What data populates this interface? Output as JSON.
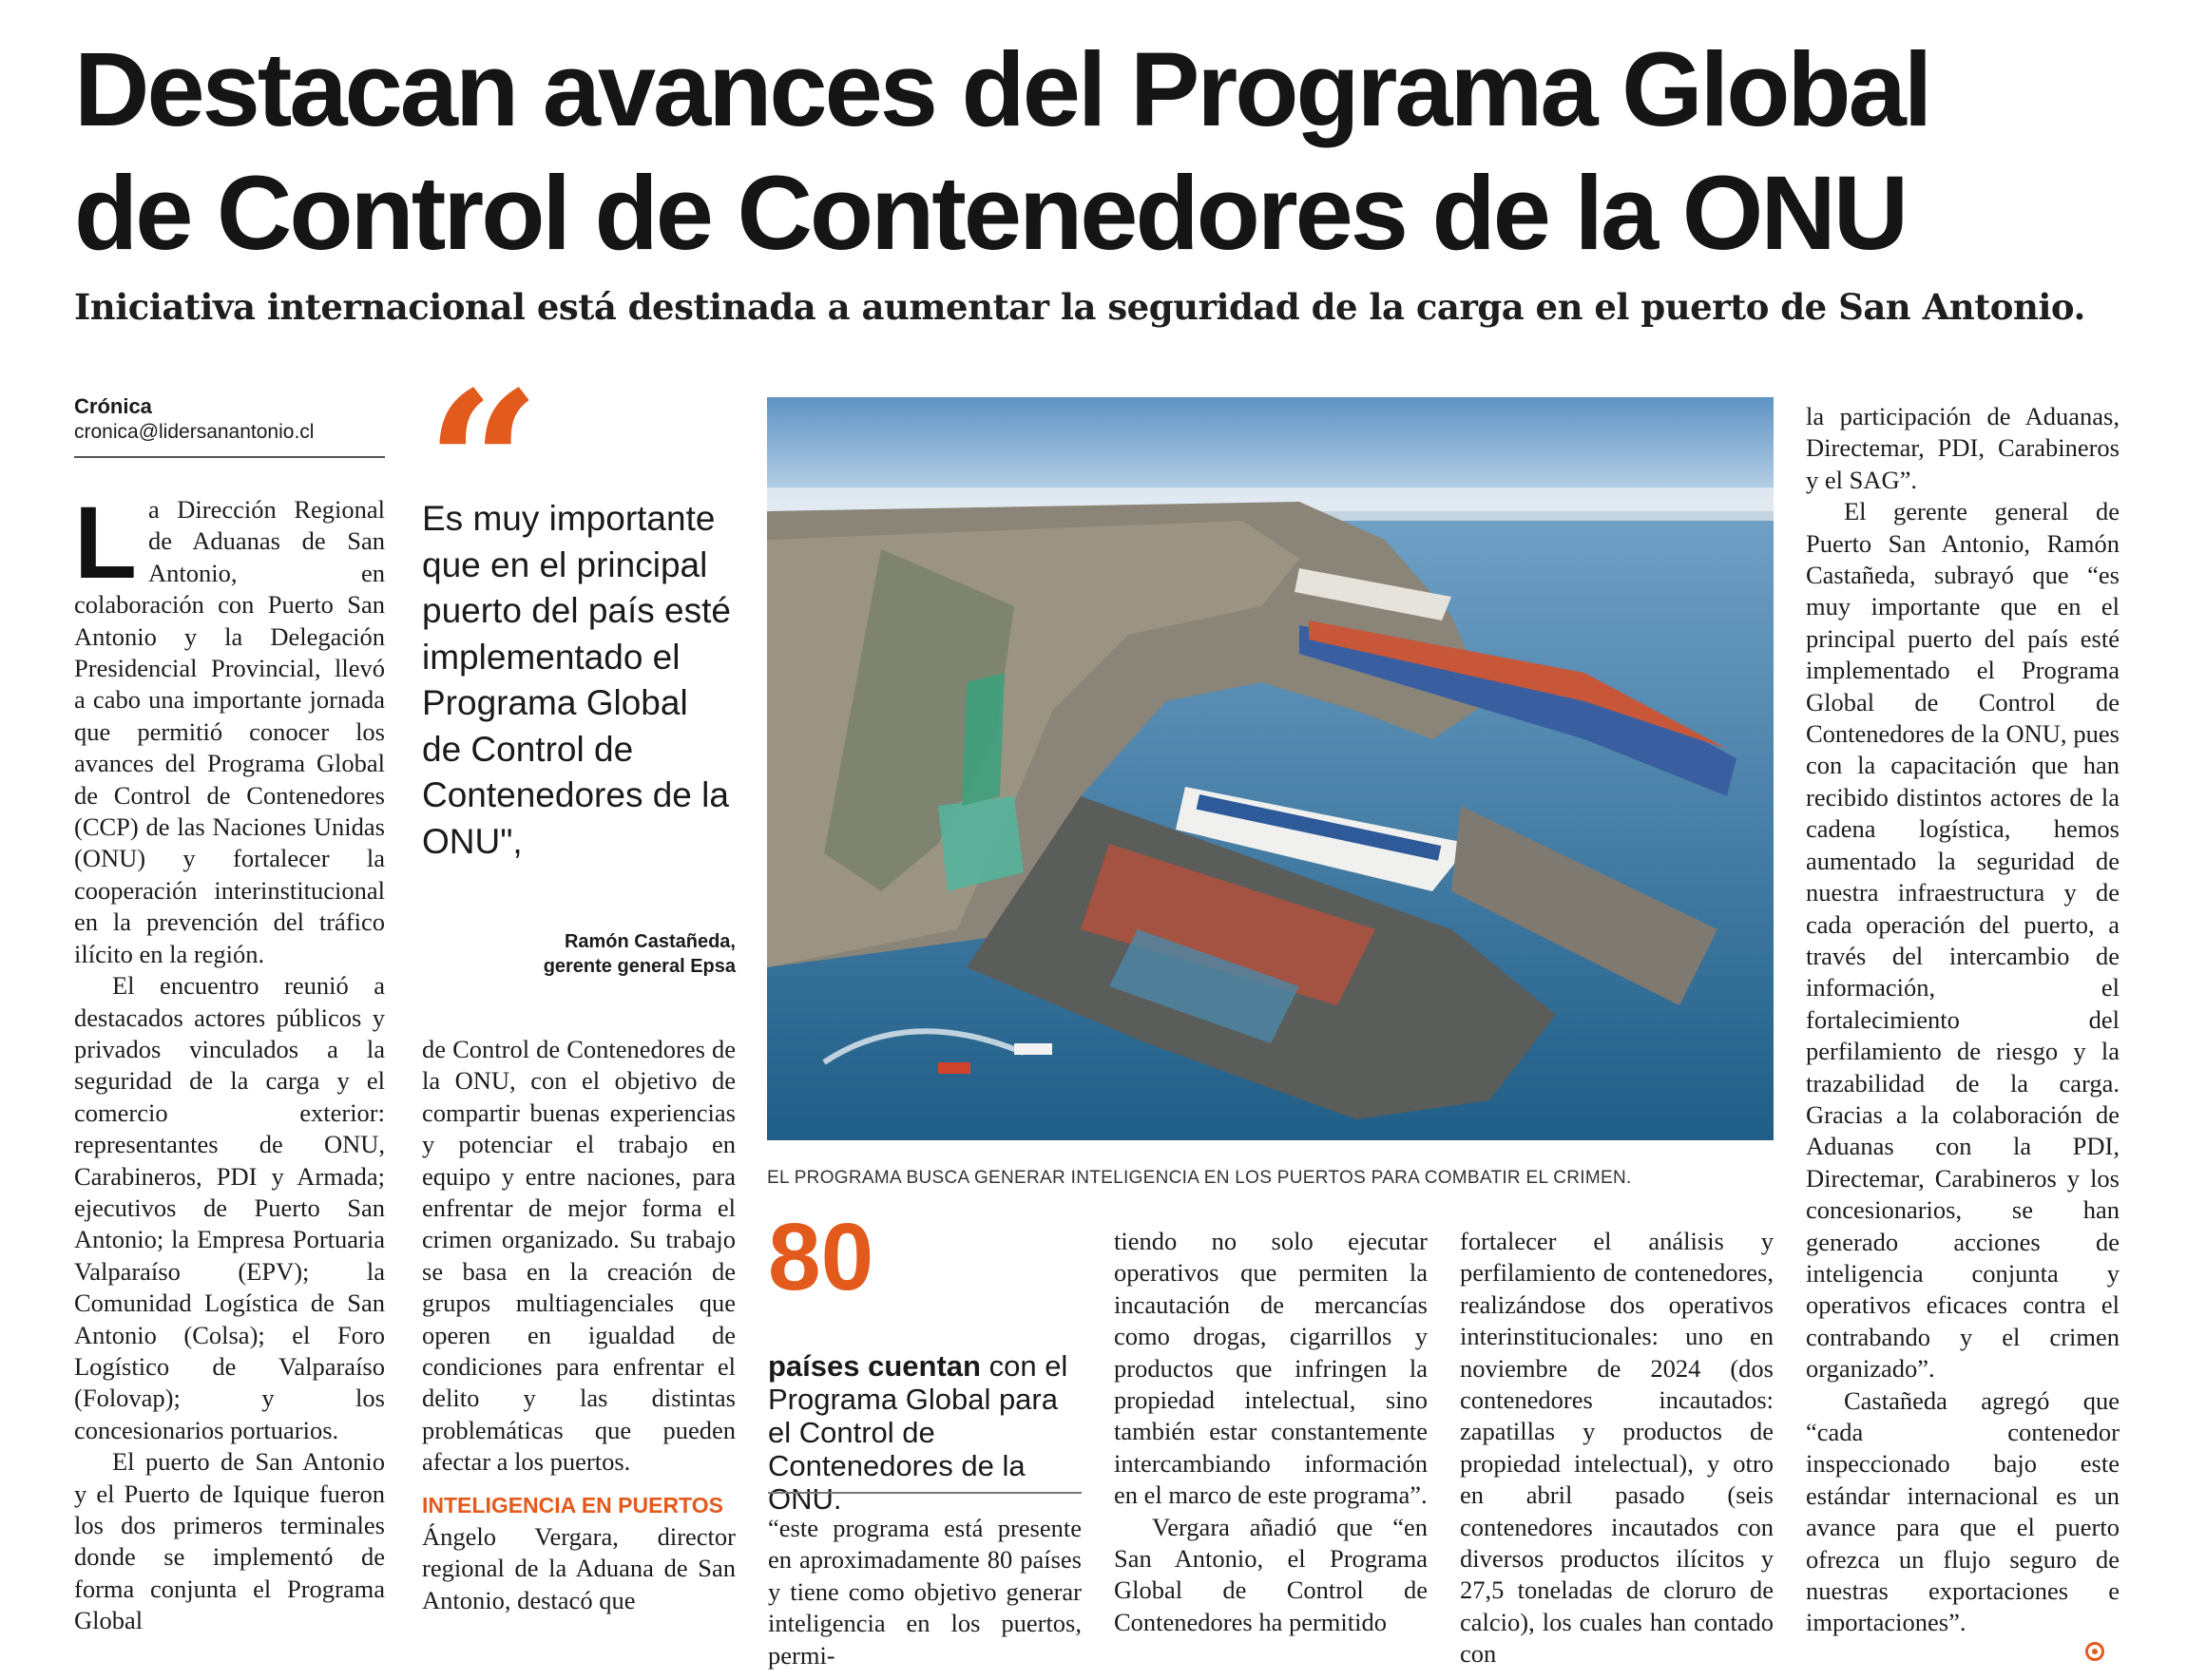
{
  "article": {
    "headline_line1": "Destacan avances del Programa Global",
    "headline_line2": "de Control de Contenedores de la ONU",
    "subheadline": "Iniciativa internacional está destinada a aumentar la seguridad de la carga en el puerto de San Antonio.",
    "byline_name": "Crónica",
    "byline_email": "cronica@lidersanantonio.cl"
  },
  "column1": {
    "dropcap": "L",
    "p1": "a Dirección Regional de Aduanas de San Antonio, en colaboración con Puerto San Antonio y la Delegación Presidencial Provincial, llevó a cabo una importante jornada que permitió conocer los avances del Programa Global de Control de Contenedores (CCP) de las Naciones Unidas (ONU) y fortalecer la cooperación interinstitucional en la prevención del tráfico ilícito en la región.",
    "p2": "El encuentro reunió a destacados actores públicos y privados vinculados a la seguridad de la carga y el comercio exterior: representantes de ONU, Carabineros, PDI y Armada; ejecutivos de Puerto San Antonio; la Empresa Portuaria Valparaíso (EPV); la Comunidad Logística de San Antonio (Colsa); el Foro Logístico de Valparaíso (Folovap); y los concesionarios portuarios.",
    "p3": "El puerto de San Antonio y el Puerto de Iquique fueron los dos primeros terminales donde se implementó de forma conjunta el Programa Global"
  },
  "pullquote": {
    "text": "Es muy importante que en el principal puerto del país esté implementado el Programa Global de Control de Contenedores de la ONU\",",
    "attribution_name": "Ramón Castañeda,",
    "attribution_role": "gerente general Epsa"
  },
  "column2": {
    "p1": "de Control de Contenedores de la ONU, con el objetivo de compartir buenas experiencias y potenciar el trabajo en equipo y entre naciones, para enfrentar de mejor forma el crimen organizado. Su trabajo se basa en la creación de grupos multiagenciales que operen en igualdad de condiciones para enfrentar el delito y las distintas problemáticas que pueden afectar a los puertos.",
    "subhead": "INTELIGENCIA EN PUERTOS",
    "p2": "Ángelo Vergara, director regional de la Aduana de San Antonio, destacó que"
  },
  "photo": {
    "caption": "EL PROGRAMA BUSCA GENERAR INTELIGENCIA EN LOS PUERTOS PARA COMBATIR EL CRIMEN."
  },
  "highlight": {
    "number": "80",
    "text_bold": "países cuentan",
    "text_rest": " con el Programa Global para el Control de Contenedores de la ONU."
  },
  "column3": {
    "p1": "“este programa está presente en aproximadamente 80 países y tiene como objetivo generar inteligencia en los puertos, permi-"
  },
  "column4": {
    "p1": "tiendo no solo ejecutar operativos que permiten la incautación de mercancías como drogas, cigarrillos y productos que infringen la propiedad intelectual, sino también estar constantemente intercambiando información en el marco de este programa”.",
    "p2": "Vergara añadió que “en San Antonio, el Programa Global de Control de Contenedores ha permitido"
  },
  "column5": {
    "p1": "fortalecer el análisis y perfilamiento de contenedores, realizándose dos operativos interinstitucionales: uno en noviembre de 2024 (dos contenedores incautados: zapatillas y productos de propiedad intelectual), y otro en abril pasado (seis contenedores incautados con diversos productos ilícitos y 27,5 toneladas de cloruro de calcio), los cuales han contado con"
  },
  "column6": {
    "p1": "la participación de Aduanas, Directemar, PDI, Carabineros y el SAG”.",
    "p2": "El gerente general de Puerto San Antonio, Ramón Castañeda, subrayó que “es muy importante que en el principal puerto del país esté implementado el Programa Global de Control de Contenedores de la ONU, pues con la capacitación que han recibido distintos actores de la cadena logística, hemos aumentado la seguridad de nuestra infraestructura y de cada operación del puerto, a través del intercambio de información, el fortalecimiento del perfilamiento de riesgo y la trazabilidad de la carga. Gracias a la colaboración de Aduanas con la PDI, Directemar, Carabineros y los concesionarios, se han generado acciones de inteligencia conjunta y operativos eficaces contra el contrabando y el crimen organizado”.",
    "p3": "Castañeda agregó que “cada contenedor inspeccionado bajo este estándar internacional es un avance para que el puerto ofrezca un flujo seguro de nuestras exportaciones e importaciones”."
  },
  "colors": {
    "accent": "#e35a1d",
    "text": "#1b1b1b"
  },
  "icons": {
    "end_mark": "circle-end-icon",
    "quote": "quote-icon"
  }
}
